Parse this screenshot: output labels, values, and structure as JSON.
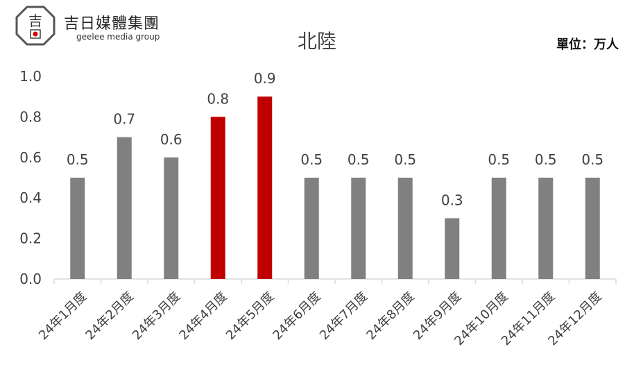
{
  "brand": {
    "logo_glyph": "吉",
    "name": "吉日媒體集團",
    "sub": "geelee media group"
  },
  "unit": "單位：万人",
  "colors": {
    "bar": "#808080",
    "highlight": "#c00000",
    "grid": "#d9d9d9",
    "text": "#404040"
  },
  "chart_data": {
    "type": "bar",
    "title": "北陸",
    "categories": [
      "24年1月度",
      "24年2月度",
      "24年3月度",
      "24年4月度",
      "24年5月度",
      "24年6月度",
      "24年7月度",
      "24年8月度",
      "24年9月度",
      "24年10月度",
      "24年11月度",
      "24年12月度"
    ],
    "values": [
      0.5,
      0.7,
      0.6,
      0.8,
      0.9,
      0.5,
      0.5,
      0.5,
      0.3,
      0.5,
      0.5,
      0.5
    ],
    "highlight": [
      false,
      false,
      false,
      true,
      true,
      false,
      false,
      false,
      false,
      false,
      false,
      false
    ],
    "ylim": [
      0,
      1.0
    ],
    "yticks": [
      "0.0",
      "0.2",
      "0.4",
      "0.6",
      "0.8",
      "1.0"
    ],
    "xlabel": "",
    "ylabel": "",
    "grid": false,
    "legend": "none"
  }
}
